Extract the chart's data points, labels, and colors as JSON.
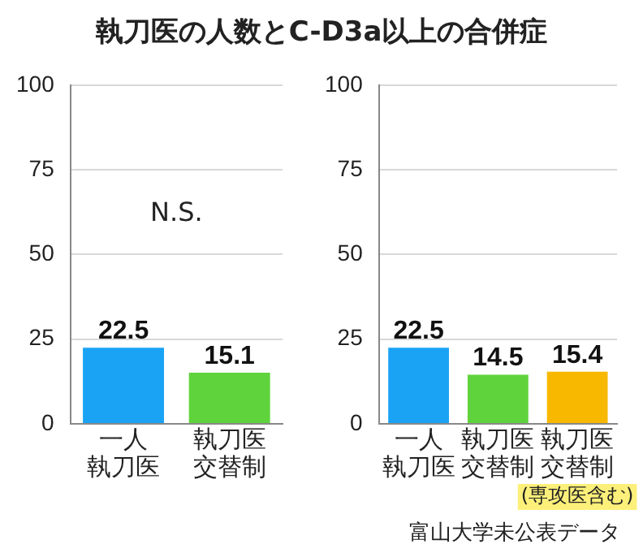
{
  "chart_data": [
    {
      "type": "bar",
      "title": "執刀医の人数とC-D3a以上の合併症",
      "categories": [
        "一人執刀医",
        "執刀医交替制"
      ],
      "values": [
        22.5,
        15.1
      ],
      "colors": [
        "#1aa3f5",
        "#5fd33c"
      ],
      "ylim": [
        0,
        100
      ],
      "yticks": [
        0,
        25,
        50,
        75,
        100
      ],
      "grid": "y",
      "data_labels": true,
      "annotations": [
        "N.S."
      ]
    },
    {
      "type": "bar",
      "categories": [
        "一人執刀医",
        "執刀医交替制",
        "執刀医交替制(専攻医含む)"
      ],
      "values": [
        22.5,
        14.5,
        15.4
      ],
      "colors": [
        "#1aa3f5",
        "#5fd33c",
        "#f8b800"
      ],
      "ylim": [
        0,
        100
      ],
      "yticks": [
        0,
        25,
        50,
        75,
        100
      ],
      "grid": "y",
      "data_labels": true,
      "annotations": [
        "富山大学未公表データ"
      ]
    }
  ]
}
